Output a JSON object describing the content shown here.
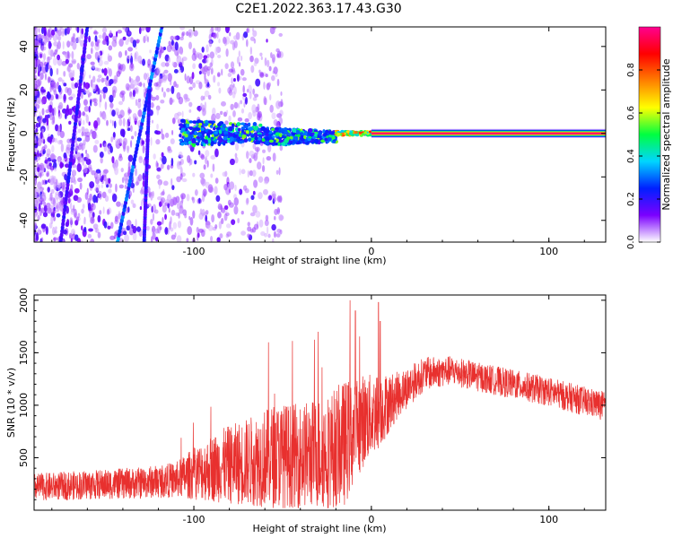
{
  "figure": {
    "title": "C2E1.2022.363.17.43.G30"
  },
  "chart_data": [
    {
      "type": "heatmap",
      "xlabel": "Height of straight line (km)",
      "ylabel": "Frequency (Hz)",
      "xlim": [
        -190,
        132
      ],
      "ylim": [
        -50,
        49
      ],
      "x_ticks": [
        -100,
        0,
        100
      ],
      "y_ticks": [
        -40,
        -20,
        0,
        20,
        40
      ],
      "colorbar": {
        "label": "Normalized spectral amplitude",
        "range": [
          0,
          1
        ],
        "ticks": [
          "0.0",
          "0.2",
          "0.4",
          "0.6",
          "0.8"
        ],
        "colormap": [
          "#ffffff",
          "#7b00ff",
          "#0020ff",
          "#00d5ff",
          "#00ff40",
          "#ffff00",
          "#ff7f00",
          "#ff0000",
          "#ff0090"
        ]
      },
      "features": {
        "noise_region_x": [
          -190,
          -50
        ],
        "diagonal_streak_1": {
          "x_at_ymin": -143,
          "x_at_ymax": -118
        },
        "diagonal_streak_2": {
          "x_at_ymin": -128,
          "x_at_ymax": -125
        },
        "diagonal_streak_3": {
          "x_at_ymin": -175,
          "x_at_ymax": -160
        },
        "scattered_band_x": [
          -108,
          -20
        ],
        "scattered_band_halfwidth_hz": 6,
        "dc_line": {
          "x_from": 0,
          "x_to": 132,
          "y": 0,
          "amplitude": 1.0
        }
      }
    },
    {
      "type": "line",
      "xlabel": "Height of straight line (km)",
      "ylabel": "SNR (10 * v/v)",
      "xlim": [
        -190,
        132
      ],
      "ylim": [
        0,
        2050
      ],
      "x_ticks": [
        -100,
        0,
        100
      ],
      "y_ticks": [
        500,
        1000,
        1500,
        2000
      ],
      "color": "#e8302e",
      "envelope": [
        {
          "x": -190,
          "mean": 220,
          "spread": 130
        },
        {
          "x": -160,
          "mean": 240,
          "spread": 140
        },
        {
          "x": -130,
          "mean": 260,
          "spread": 150
        },
        {
          "x": -110,
          "mean": 290,
          "spread": 170
        },
        {
          "x": -100,
          "mean": 350,
          "spread": 250
        },
        {
          "x": -85,
          "mean": 420,
          "spread": 350
        },
        {
          "x": -70,
          "mean": 460,
          "spread": 420
        },
        {
          "x": -55,
          "mean": 520,
          "spread": 500
        },
        {
          "x": -40,
          "mean": 520,
          "spread": 500
        },
        {
          "x": -25,
          "mean": 560,
          "spread": 550
        },
        {
          "x": -15,
          "mean": 640,
          "spread": 600
        },
        {
          "x": -5,
          "mean": 850,
          "spread": 450
        },
        {
          "x": 5,
          "mean": 950,
          "spread": 350
        },
        {
          "x": 15,
          "mean": 1100,
          "spread": 220
        },
        {
          "x": 30,
          "mean": 1300,
          "spread": 160
        },
        {
          "x": 45,
          "mean": 1330,
          "spread": 140
        },
        {
          "x": 60,
          "mean": 1270,
          "spread": 140
        },
        {
          "x": 80,
          "mean": 1200,
          "spread": 140
        },
        {
          "x": 100,
          "mean": 1130,
          "spread": 140
        },
        {
          "x": 115,
          "mean": 1060,
          "spread": 140
        },
        {
          "x": 132,
          "mean": 990,
          "spread": 140
        }
      ],
      "spikes": [
        {
          "x": -58,
          "y": 1600
        },
        {
          "x": -30,
          "y": 1700
        },
        {
          "x": -12,
          "y": 2000
        },
        {
          "x": -9,
          "y": 1900
        },
        {
          "x": 4,
          "y": 1980
        },
        {
          "x": 5,
          "y": 1800
        }
      ]
    }
  ]
}
